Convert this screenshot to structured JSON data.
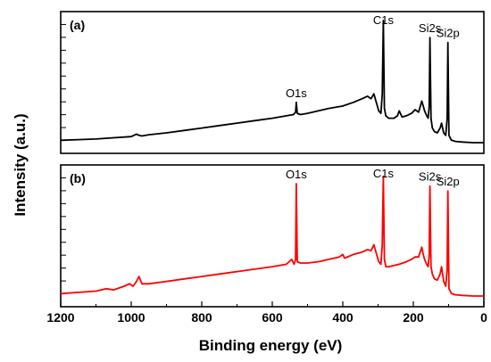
{
  "chart_data": {
    "type": "line",
    "xlabel": "Binding energy (eV)",
    "ylabel": "Intensity (a.u.)",
    "xlim": [
      1200,
      0
    ],
    "x_reversed": true,
    "xticks": [
      {
        "value": 1200,
        "label": "1200"
      },
      {
        "value": 1000,
        "label": "1000"
      },
      {
        "value": 800,
        "label": "800"
      },
      {
        "value": 600,
        "label": "600"
      },
      {
        "value": 400,
        "label": "400"
      },
      {
        "value": 200,
        "label": "200"
      },
      {
        "value": 0,
        "label": "0"
      }
    ],
    "grid": false,
    "panels": [
      {
        "label": "(a)",
        "color": "#000000",
        "ylim": [
          0,
          1
        ],
        "peak_labels": [
          {
            "text": "O1s",
            "x": 532
          },
          {
            "text": "C1s",
            "x": 285
          },
          {
            "text": "Si2s",
            "x": 153
          },
          {
            "text": "Si2p",
            "x": 102
          }
        ],
        "series": [
          {
            "x": [
              1200,
              1150,
              1100,
              1050,
              1000,
              985,
              978,
              970,
              950,
              900,
              850,
              800,
              750,
              700,
              650,
              600,
              560,
              540,
              534,
              532,
              529,
              520,
              500,
              470,
              440,
              400,
              370,
              345,
              330,
              320,
              312,
              305,
              298,
              292,
              288,
              285,
              282,
              278,
              270,
              255,
              245,
              240,
              232,
              220,
              205,
              195,
              185,
              176,
              172,
              168,
              162,
              158,
              155,
              153,
              150,
              146,
              140,
              132,
              124,
              120,
              114,
              108,
              104,
              102,
              99,
              92,
              80,
              60,
              30,
              0
            ],
            "y": [
              0.02,
              0.025,
              0.03,
              0.04,
              0.05,
              0.07,
              0.06,
              0.055,
              0.065,
              0.08,
              0.1,
              0.12,
              0.14,
              0.16,
              0.18,
              0.2,
              0.22,
              0.23,
              0.25,
              0.33,
              0.24,
              0.23,
              0.24,
              0.26,
              0.28,
              0.3,
              0.33,
              0.36,
              0.38,
              0.36,
              0.4,
              0.33,
              0.26,
              0.24,
              0.4,
              1.0,
              0.28,
              0.22,
              0.2,
              0.2,
              0.22,
              0.26,
              0.21,
              0.22,
              0.24,
              0.27,
              0.25,
              0.34,
              0.3,
              0.26,
              0.22,
              0.2,
              0.3,
              0.86,
              0.2,
              0.12,
              0.09,
              0.08,
              0.12,
              0.16,
              0.08,
              0.06,
              0.2,
              0.82,
              0.06,
              0.02,
              0.01,
              0.005,
              0.0,
              0.0
            ]
          }
        ]
      },
      {
        "label": "(b)",
        "color": "#ff0000",
        "ylim": [
          0,
          1
        ],
        "peak_labels": [
          {
            "text": "O1s",
            "x": 532
          },
          {
            "text": "C1s",
            "x": 285
          },
          {
            "text": "Si2s",
            "x": 153
          },
          {
            "text": "Si2p",
            "x": 102
          }
        ],
        "series": [
          {
            "x": [
              1200,
              1150,
              1100,
              1070,
              1050,
              1020,
              1005,
              995,
              985,
              978,
              970,
              950,
              900,
              850,
              800,
              750,
              700,
              650,
              600,
              560,
              545,
              538,
              534,
              532,
              529,
              520,
              500,
              470,
              440,
              410,
              400,
              395,
              370,
              345,
              330,
              320,
              312,
              305,
              298,
              292,
              288,
              285,
              282,
              278,
              270,
              255,
              240,
              220,
              205,
              195,
              185,
              176,
              172,
              168,
              162,
              158,
              155,
              153,
              150,
              146,
              140,
              132,
              124,
              120,
              114,
              108,
              104,
              102,
              99,
              92,
              80,
              60,
              30,
              0
            ],
            "y": [
              0.02,
              0.03,
              0.04,
              0.06,
              0.05,
              0.08,
              0.1,
              0.08,
              0.12,
              0.16,
              0.1,
              0.1,
              0.12,
              0.14,
              0.16,
              0.18,
              0.2,
              0.22,
              0.24,
              0.26,
              0.3,
              0.26,
              0.3,
              0.92,
              0.28,
              0.27,
              0.27,
              0.28,
              0.3,
              0.32,
              0.34,
              0.31,
              0.34,
              0.36,
              0.38,
              0.37,
              0.42,
              0.35,
              0.28,
              0.26,
              0.42,
              0.98,
              0.3,
              0.24,
              0.24,
              0.25,
              0.26,
              0.28,
              0.3,
              0.32,
              0.32,
              0.4,
              0.34,
              0.3,
              0.26,
              0.24,
              0.34,
              0.9,
              0.24,
              0.18,
              0.14,
              0.13,
              0.18,
              0.24,
              0.12,
              0.08,
              0.22,
              0.86,
              0.06,
              0.02,
              0.01,
              0.005,
              0.0,
              0.0
            ]
          }
        ]
      }
    ]
  }
}
